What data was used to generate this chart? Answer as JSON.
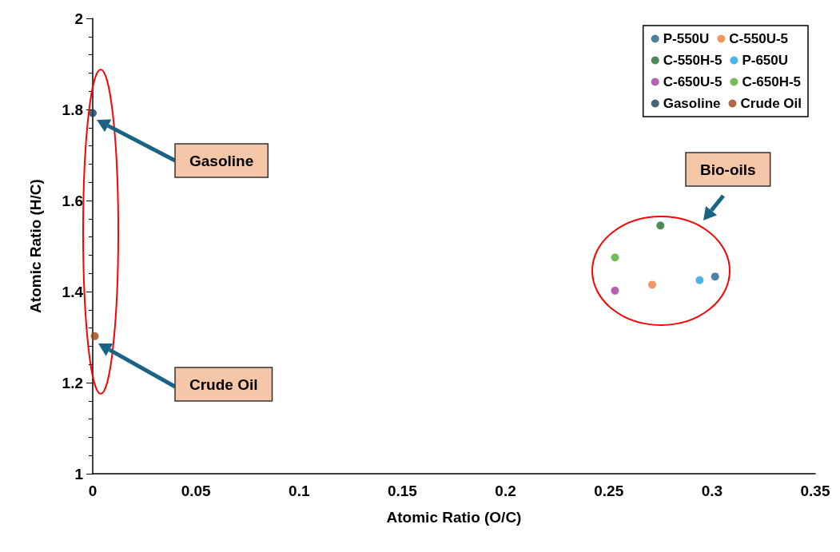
{
  "chart_data": {
    "type": "scatter",
    "xlabel": "Atomic Ratio (O/C)",
    "ylabel": "Atomic Ratio (H/C)",
    "xlim": [
      0,
      0.35
    ],
    "xticks": [
      0,
      0.05,
      0.1,
      0.15,
      0.2,
      0.25,
      0.3,
      0.35
    ],
    "ylim": [
      1,
      2
    ],
    "yticks": [
      1,
      1.2,
      1.4,
      1.6,
      1.8,
      2
    ],
    "grid": false,
    "legend": "top right",
    "marker": "circle",
    "series": [
      {
        "name": "P-550U",
        "color": "#1f6389",
        "x": [
          0.3015
        ],
        "values": [
          1.433
        ]
      },
      {
        "name": "C-550U-5",
        "color": "#ed7d3a",
        "x": [
          0.271
        ],
        "values": [
          1.415
        ]
      },
      {
        "name": "C-550H-5",
        "color": "#1e6f30",
        "x": [
          0.275
        ],
        "values": [
          1.545
        ]
      },
      {
        "name": "P-650U",
        "color": "#1ea2dc",
        "x": [
          0.294
        ],
        "values": [
          1.425
        ]
      },
      {
        "name": "C-650U-5",
        "color": "#a33aa3",
        "x": [
          0.253
        ],
        "values": [
          1.402
        ]
      },
      {
        "name": "C-650H-5",
        "color": "#55ab32",
        "x": [
          0.253
        ],
        "values": [
          1.475
        ]
      },
      {
        "name": "Gasoline",
        "color": "#173f56",
        "x": [
          0
        ],
        "values": [
          1.792
        ]
      },
      {
        "name": "Crude Oil",
        "color": "#9c4515",
        "x": [
          0.001
        ],
        "values": [
          1.302
        ]
      }
    ],
    "annotations": [
      "Gasoline",
      "Crude Oil",
      "Bio-oils"
    ]
  }
}
